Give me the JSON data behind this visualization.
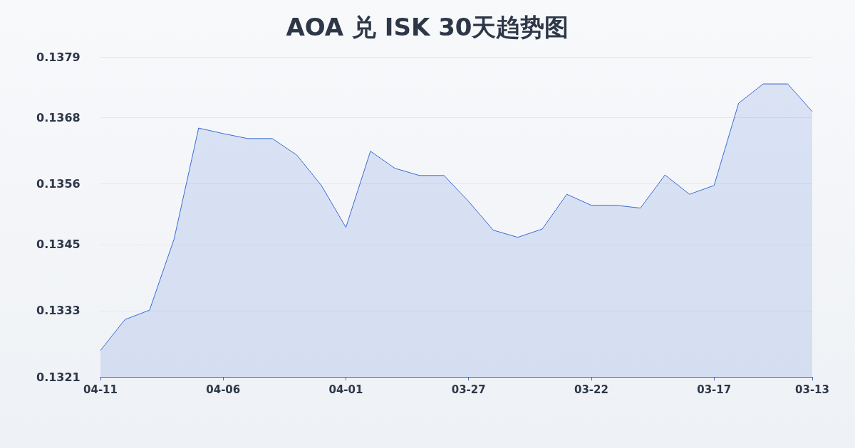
{
  "chart_data": {
    "type": "area",
    "title": "AOA 兑 ISK 30天趋势图",
    "categories": [
      "04-11",
      null,
      null,
      null,
      null,
      "04-06",
      null,
      null,
      null,
      null,
      "04-01",
      null,
      null,
      null,
      null,
      "03-27",
      null,
      null,
      null,
      null,
      "03-22",
      null,
      null,
      null,
      null,
      "03-17",
      null,
      null,
      null,
      "03-13"
    ],
    "series": [
      {
        "color": "#3a6bd4",
        "values": [
          0.13258,
          0.13314,
          0.13331,
          0.1346,
          0.13661,
          0.13651,
          0.13642,
          0.13642,
          0.13612,
          0.13557,
          0.13481,
          0.13619,
          0.13588,
          0.13575,
          0.13575,
          0.13528,
          0.13476,
          0.13463,
          0.13478,
          0.13541,
          0.13521,
          0.13521,
          0.13516,
          0.13576,
          0.13541,
          0.13557,
          0.13706,
          0.13741,
          0.13741,
          0.13691
        ]
      }
    ],
    "ylim": [
      0.1321,
      0.1379
    ],
    "yticks": [
      0.1321,
      0.1333,
      0.1345,
      0.1356,
      0.1368,
      0.1379
    ],
    "grid": "y",
    "marker": "none"
  }
}
